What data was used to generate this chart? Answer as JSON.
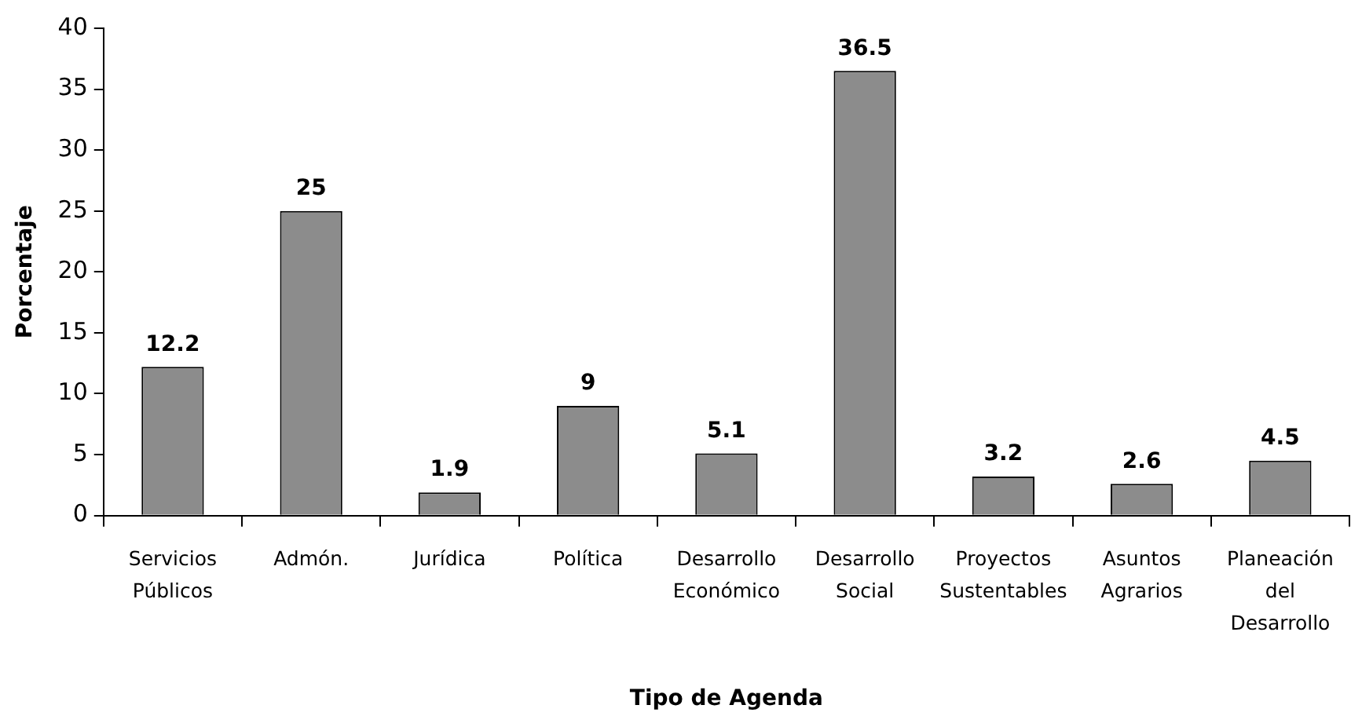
{
  "chart_data": {
    "type": "bar",
    "xlabel": "Tipo de Agenda",
    "ylabel": "Porcentaje",
    "categories": [
      "Servicios Públicos",
      "Admón.",
      "Jurídica",
      "Política",
      "Desarrollo Económico",
      "Desarrollo Social",
      "Proyectos Sustentables",
      "Asuntos Agrarios",
      "Planeación del Desarrollo"
    ],
    "values": [
      12.2,
      25,
      1.9,
      9,
      5.1,
      36.5,
      3.2,
      2.6,
      4.5
    ],
    "color": "#8c8c8c",
    "ylim": [
      0,
      40
    ],
    "yticks": [
      0,
      5,
      10,
      15,
      20,
      25,
      30,
      35,
      40
    ],
    "data_labels": true
  }
}
